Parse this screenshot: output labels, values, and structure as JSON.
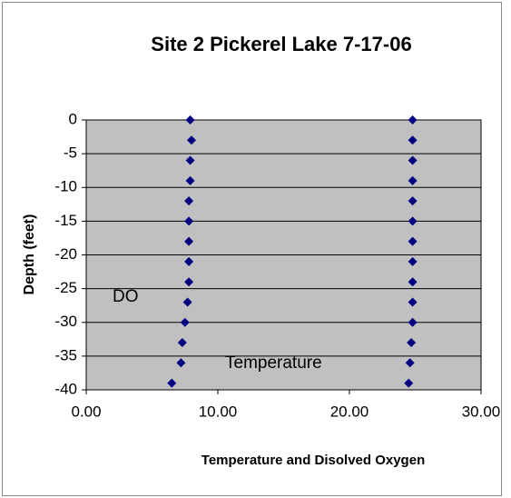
{
  "chart_data": {
    "type": "scatter",
    "title": "Site 2 Pickerel Lake  7-17-06",
    "xlabel": "Temperature and Disolved Oxygen",
    "ylabel": "Depth (feet)",
    "annotations": [
      "DO",
      "Temperature"
    ],
    "series": [
      {
        "color": "#000080",
        "x": [
          7.9,
          8.0,
          7.9,
          7.9,
          7.8,
          7.8,
          7.8,
          7.8,
          7.8,
          7.7,
          7.5,
          7.3,
          7.2,
          6.5
        ],
        "y": [
          0,
          -3,
          -6,
          -9,
          -12,
          -15,
          -18,
          -21,
          -24,
          -27,
          -30,
          -33,
          -36,
          -39
        ]
      },
      {
        "color": "#000080",
        "x": [
          24.8,
          24.8,
          24.8,
          24.8,
          24.8,
          24.8,
          24.8,
          24.8,
          24.8,
          24.8,
          24.8,
          24.7,
          24.6,
          24.5
        ],
        "y": [
          0,
          -3,
          -6,
          -9,
          -12,
          -15,
          -18,
          -21,
          -24,
          -27,
          -30,
          -33,
          -36,
          -39
        ]
      }
    ],
    "xlim": [
      0,
      30
    ],
    "xticks": [
      {
        "value": 0,
        "label": "0.00"
      },
      {
        "value": 10,
        "label": "10.00"
      },
      {
        "value": 20,
        "label": "20.00"
      },
      {
        "value": 30,
        "label": "30.00"
      }
    ],
    "ylim": [
      -40,
      0
    ],
    "yticks": [
      0,
      -5,
      -10,
      -15,
      -20,
      -25,
      -30,
      -35,
      -40
    ],
    "grid": true,
    "plot_color": "#c0c0c0"
  }
}
